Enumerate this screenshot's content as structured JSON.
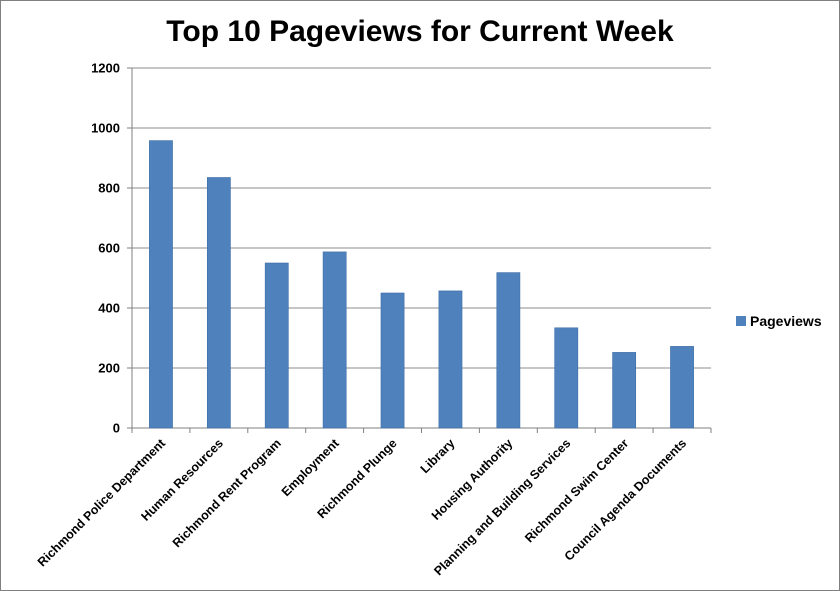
{
  "chart_data": {
    "type": "bar",
    "title": "Top 10 Pageviews for Current Week",
    "xlabel": "",
    "ylabel": "",
    "categories": [
      "Richmond Police Department",
      "Human Resources",
      "Richmond Rent Program",
      "Employment",
      "Richmond Plunge",
      "Library",
      "Housing Authority",
      "Planning and Building Services",
      "Richmond Swim Center",
      "Council Agenda Documents"
    ],
    "series": [
      {
        "name": "Pageviews",
        "values": [
          958,
          835,
          550,
          587,
          450,
          457,
          518,
          334,
          252,
          272
        ],
        "color": "#4f81bd"
      }
    ],
    "ylim": [
      0,
      1200
    ],
    "yticks": [
      0,
      200,
      400,
      600,
      800,
      1000,
      1200
    ],
    "grid": true,
    "legend": "right"
  }
}
